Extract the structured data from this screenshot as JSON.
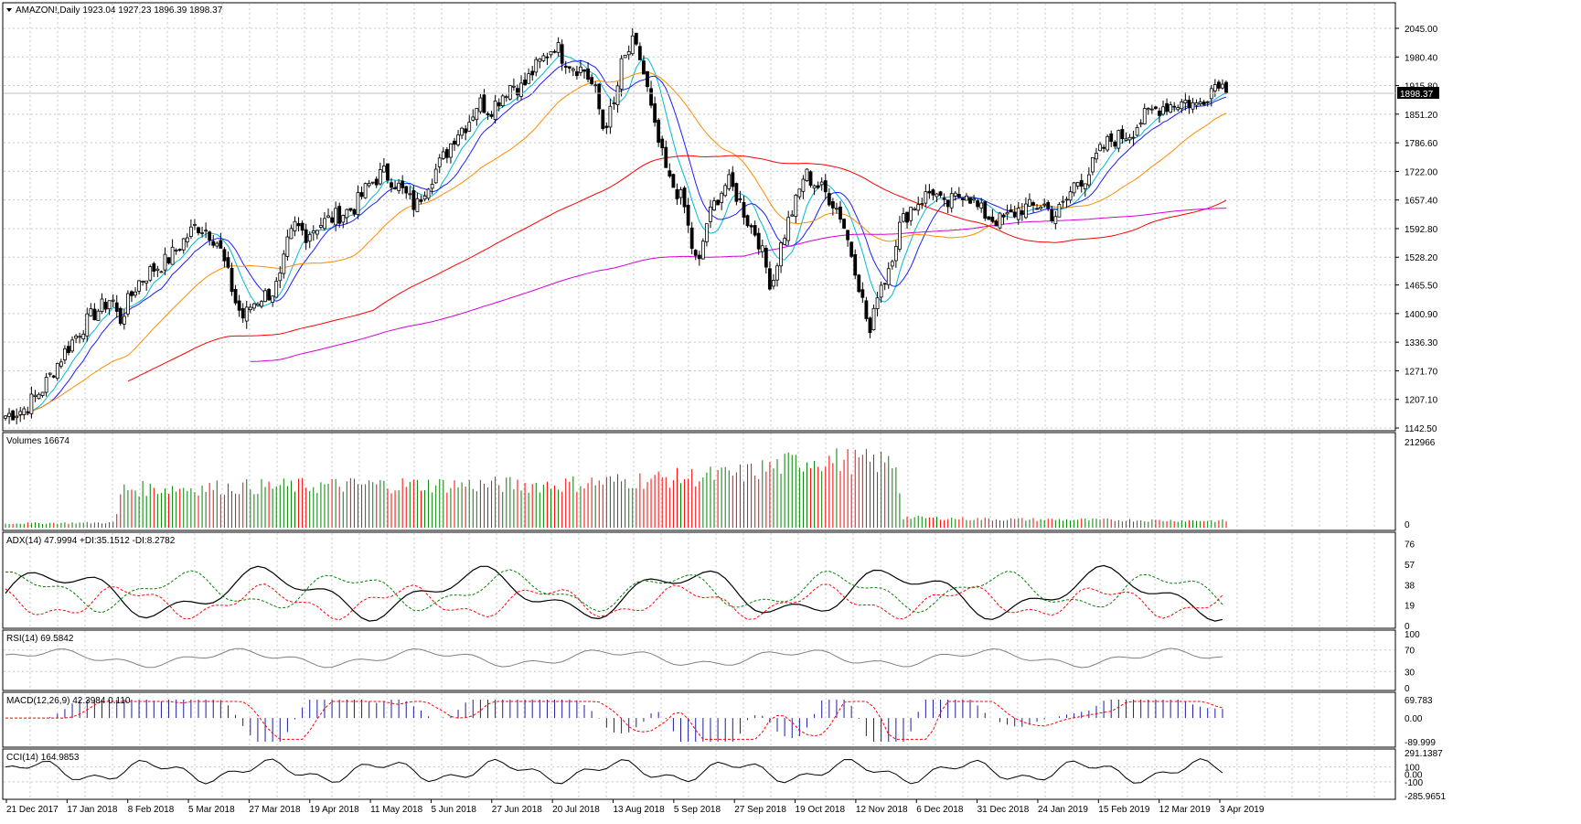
{
  "chart_data": [
    {
      "type": "candlestick",
      "title": "AMAZON!,Daily  1923.04 1927.23 1896.39 1898.37",
      "symbol": "AMAZON!",
      "timeframe": "Daily",
      "ohlc_last": {
        "open": 1923.04,
        "high": 1927.23,
        "low": 1896.39,
        "close": 1898.37
      },
      "current_price_label": "1898.37",
      "y_ticks": [
        "2045.00",
        "1980.40",
        "1915.80",
        "1851.20",
        "1786.60",
        "1722.00",
        "1657.40",
        "1592.80",
        "1528.20",
        "1465.50",
        "1400.90",
        "1336.30",
        "1271.70",
        "1207.10",
        "1142.50"
      ],
      "ylim": [
        1142.5,
        2045.0
      ],
      "x_tick_labels": [
        "21 Dec 2017",
        "17 Jan 2018",
        "8 Feb 2018",
        "5 Mar 2018",
        "27 Mar 2018",
        "19 Apr 2018",
        "11 May 2018",
        "5 Jun 2018",
        "27 Jun 2018",
        "20 Jul 2018",
        "13 Aug 2018",
        "5 Sep 2018",
        "27 Sep 2018",
        "19 Oct 2018",
        "12 Nov 2018",
        "6 Dec 2018",
        "31 Dec 2018",
        "24 Jan 2019",
        "15 Feb 2019",
        "12 Mar 2019",
        "3 Apr 2019"
      ],
      "close_path": [
        [
          0,
          1170
        ],
        [
          10,
          1185
        ],
        [
          20,
          1230
        ],
        [
          30,
          1300
        ],
        [
          40,
          1360
        ],
        [
          48,
          1400
        ],
        [
          54,
          1420
        ],
        [
          58,
          1440
        ],
        [
          62,
          1380
        ],
        [
          66,
          1420
        ],
        [
          72,
          1470
        ],
        [
          80,
          1500
        ],
        [
          88,
          1520
        ],
        [
          96,
          1560
        ],
        [
          104,
          1600
        ],
        [
          110,
          1590
        ],
        [
          116,
          1560
        ],
        [
          122,
          1480
        ],
        [
          126,
          1420
        ],
        [
          130,
          1390
        ],
        [
          134,
          1420
        ],
        [
          140,
          1440
        ],
        [
          146,
          1450
        ],
        [
          150,
          1480
        ],
        [
          154,
          1560
        ],
        [
          158,
          1600
        ],
        [
          164,
          1580
        ],
        [
          170,
          1600
        ],
        [
          180,
          1620
        ],
        [
          190,
          1640
        ],
        [
          198,
          1690
        ],
        [
          206,
          1720
        ],
        [
          212,
          1700
        ],
        [
          218,
          1670
        ],
        [
          224,
          1640
        ],
        [
          228,
          1680
        ],
        [
          234,
          1720
        ],
        [
          240,
          1760
        ],
        [
          246,
          1810
        ],
        [
          252,
          1830
        ],
        [
          258,
          1880
        ],
        [
          264,
          1860
        ],
        [
          270,
          1890
        ],
        [
          276,
          1920
        ],
        [
          282,
          1910
        ],
        [
          288,
          1950
        ],
        [
          294,
          1980
        ],
        [
          300,
          2010
        ],
        [
          304,
          1980
        ],
        [
          310,
          1960
        ],
        [
          316,
          1950
        ],
        [
          322,
          1900
        ],
        [
          326,
          1820
        ],
        [
          332,
          1870
        ],
        [
          336,
          1960
        ],
        [
          342,
          2010
        ],
        [
          346,
          1980
        ],
        [
          350,
          1910
        ],
        [
          354,
          1820
        ],
        [
          358,
          1760
        ],
        [
          362,
          1700
        ],
        [
          366,
          1680
        ],
        [
          370,
          1650
        ],
        [
          374,
          1560
        ],
        [
          378,
          1500
        ],
        [
          382,
          1600
        ],
        [
          388,
          1660
        ],
        [
          394,
          1700
        ],
        [
          400,
          1660
        ],
        [
          406,
          1600
        ],
        [
          410,
          1580
        ],
        [
          414,
          1520
        ],
        [
          418,
          1460
        ],
        [
          422,
          1540
        ],
        [
          428,
          1620
        ],
        [
          432,
          1660
        ],
        [
          436,
          1720
        ],
        [
          440,
          1700
        ],
        [
          446,
          1680
        ],
        [
          452,
          1650
        ],
        [
          456,
          1620
        ],
        [
          460,
          1560
        ],
        [
          464,
          1500
        ],
        [
          468,
          1420
        ],
        [
          472,
          1350
        ],
        [
          476,
          1460
        ],
        [
          480,
          1480
        ],
        [
          484,
          1540
        ],
        [
          488,
          1600
        ],
        [
          494,
          1640
        ],
        [
          500,
          1660
        ],
        [
          506,
          1680
        ],
        [
          512,
          1640
        ],
        [
          518,
          1660
        ],
        [
          524,
          1680
        ],
        [
          530,
          1640
        ],
        [
          536,
          1620
        ],
        [
          542,
          1610
        ],
        [
          548,
          1620
        ],
        [
          554,
          1640
        ],
        [
          560,
          1640
        ],
        [
          566,
          1650
        ],
        [
          572,
          1620
        ],
        [
          578,
          1650
        ],
        [
          584,
          1700
        ],
        [
          590,
          1710
        ],
        [
          596,
          1760
        ],
        [
          602,
          1790
        ],
        [
          608,
          1800
        ],
        [
          614,
          1810
        ],
        [
          620,
          1840
        ],
        [
          626,
          1860
        ],
        [
          632,
          1870
        ],
        [
          638,
          1875
        ],
        [
          644,
          1880
        ],
        [
          650,
          1870
        ],
        [
          656,
          1900
        ],
        [
          662,
          1930
        ],
        [
          666,
          1898
        ]
      ],
      "series": [
        {
          "name": "MA(8)",
          "color": "#00bcd4"
        },
        {
          "name": "MA(13)",
          "color": "#1c1cff"
        },
        {
          "name": "MA(34)",
          "color": "#ff8c00"
        },
        {
          "name": "MA(100)",
          "color": "#ff0000"
        },
        {
          "name": "MA(200)",
          "color": "#d400d4"
        }
      ]
    },
    {
      "type": "bar",
      "title": "Volumes 16674",
      "y_ticks": [
        "212966",
        "0"
      ],
      "ylim": [
        0,
        212966
      ],
      "profile": [
        [
          0,
          0.05
        ],
        [
          0.09,
          0.06
        ],
        [
          0.095,
          0.45
        ],
        [
          0.3,
          0.5
        ],
        [
          0.45,
          0.5
        ],
        [
          0.6,
          0.62
        ],
        [
          0.66,
          0.8
        ],
        [
          0.73,
          0.75
        ],
        [
          0.735,
          0.12
        ],
        [
          0.8,
          0.1
        ],
        [
          1,
          0.08
        ]
      ]
    },
    {
      "type": "line",
      "title": "ADX(14) 47.9994 +DI:35.1512 -DI:8.2782",
      "y_ticks": [
        "76",
        "57",
        "38",
        "19",
        "0"
      ],
      "ylim": [
        0,
        80
      ],
      "series": [
        {
          "name": "ADX",
          "color": "#000000",
          "style": "solid"
        },
        {
          "name": "+DI",
          "color": "#008000",
          "style": "dashed"
        },
        {
          "name": "-DI",
          "color": "#ff0000",
          "style": "dashed"
        }
      ]
    },
    {
      "type": "line",
      "title": "RSI(14) 69.5842",
      "y_ticks": [
        "100",
        "70",
        "30",
        "0"
      ],
      "ylim": [
        0,
        100
      ],
      "series": [
        {
          "name": "RSI",
          "color": "#808080"
        }
      ]
    },
    {
      "type": "bar",
      "title": "MACD(12,26,9) 42.3984 0.110",
      "y_ticks": [
        "69.783",
        "0.00",
        "-89.999"
      ],
      "ylim": [
        -89.999,
        69.783
      ],
      "series": [
        {
          "name": "MACD",
          "color": "#1c1ca0"
        },
        {
          "name": "Signal",
          "color": "#ff0000",
          "style": "dashed"
        }
      ]
    },
    {
      "type": "line",
      "title": "CCI(14) 164.9853",
      "y_ticks": [
        "291.1387",
        "100",
        "0.00",
        "-100",
        "-285.9651"
      ],
      "ylim": [
        -285.9651,
        291.1387
      ],
      "series": [
        {
          "name": "CCI",
          "color": "#000000"
        }
      ]
    }
  ]
}
